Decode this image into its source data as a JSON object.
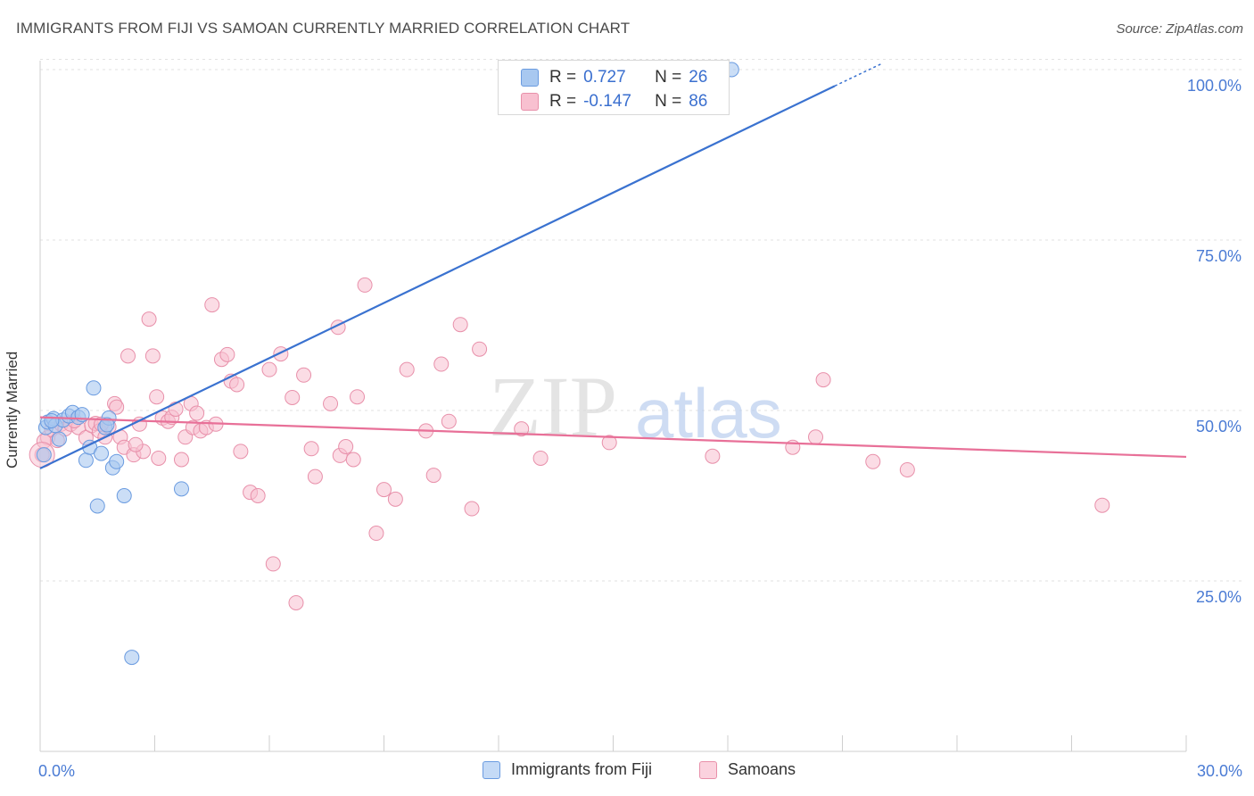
{
  "title": "IMMIGRANTS FROM FIJI VS SAMOAN CURRENTLY MARRIED CORRELATION CHART",
  "source": "Source: ZipAtlas.com",
  "watermark": {
    "zip": "ZIP",
    "atlas": "atlas"
  },
  "legend_stats": [
    {
      "r_label": "R =",
      "r_value": "0.727",
      "n_label": "N =",
      "n_value": "26",
      "color": "#a8c8f0",
      "border": "#6a9be0"
    },
    {
      "r_label": "R =",
      "r_value": "-0.147",
      "n_label": "N =",
      "n_value": "86",
      "color": "#f8c0d0",
      "border": "#e890aa"
    }
  ],
  "legend_bottom": [
    {
      "label": "Immigrants from Fiji",
      "color": "#c4daf6",
      "border": "#6a9be0"
    },
    {
      "label": "Samoans",
      "color": "#fbd2de",
      "border": "#e890aa"
    }
  ],
  "chart_data": {
    "type": "scatter",
    "title": "IMMIGRANTS FROM FIJI VS SAMOAN CURRENTLY MARRIED CORRELATION CHART",
    "xlabel": "",
    "ylabel": "Currently Married",
    "xlim": [
      0,
      30
    ],
    "ylim": [
      0,
      102
    ],
    "x_tick_labels": [
      "0.0%",
      "30.0%"
    ],
    "y_ticks": [
      25,
      50,
      75,
      100
    ],
    "y_tick_labels": [
      "25.0%",
      "50.0%",
      "75.0%",
      "100.0%"
    ],
    "grid": true,
    "legend_position": "top-center",
    "series": [
      {
        "name": "Immigrants from Fiji",
        "color": "#5b8fe0",
        "fill": "#a8c8f0",
        "trend": {
          "x": [
            0,
            20.8
          ],
          "y": [
            41.5,
            97.6
          ]
        },
        "trend_dash": {
          "x": [
            20.8,
            22
          ],
          "y": [
            97.6,
            100.8
          ]
        },
        "points": [
          [
            0.1,
            43.5
          ],
          [
            0.15,
            47.5
          ],
          [
            0.2,
            48.3
          ],
          [
            0.35,
            48.8
          ],
          [
            0.4,
            47.8
          ],
          [
            0.5,
            45.8
          ],
          [
            0.6,
            48.6
          ],
          [
            0.75,
            49.2
          ],
          [
            0.85,
            49.7
          ],
          [
            1.0,
            49.0
          ],
          [
            1.1,
            49.4
          ],
          [
            1.2,
            42.7
          ],
          [
            1.3,
            44.6
          ],
          [
            1.4,
            53.3
          ],
          [
            1.5,
            36.0
          ],
          [
            1.6,
            43.7
          ],
          [
            1.7,
            47.5
          ],
          [
            1.8,
            48.9
          ],
          [
            1.9,
            41.6
          ],
          [
            2.0,
            42.5
          ],
          [
            2.2,
            37.5
          ],
          [
            2.4,
            13.8
          ],
          [
            3.7,
            38.5
          ],
          [
            18.1,
            100.0
          ],
          [
            0.3,
            48.5
          ],
          [
            1.75,
            47.9
          ]
        ]
      },
      {
        "name": "Samoans",
        "color": "#e87098",
        "fill": "#f8c0d0",
        "trend": {
          "x": [
            0,
            30
          ],
          "y": [
            49.0,
            43.2
          ]
        },
        "points": [
          [
            0.05,
            43.5
          ],
          [
            0.2,
            46.0
          ],
          [
            0.3,
            47.2
          ],
          [
            0.45,
            45.6
          ],
          [
            0.55,
            48.0
          ],
          [
            0.65,
            47.3
          ],
          [
            0.8,
            48.0
          ],
          [
            1.0,
            47.5
          ],
          [
            1.2,
            46.0
          ],
          [
            1.35,
            47.8
          ],
          [
            1.45,
            48.1
          ],
          [
            1.55,
            47.0
          ],
          [
            1.7,
            46.1
          ],
          [
            1.8,
            47.6
          ],
          [
            1.95,
            51.0
          ],
          [
            2.0,
            50.5
          ],
          [
            2.1,
            46.1
          ],
          [
            2.2,
            44.6
          ],
          [
            2.3,
            58.0
          ],
          [
            2.45,
            43.5
          ],
          [
            2.6,
            48.0
          ],
          [
            2.7,
            44.0
          ],
          [
            2.85,
            63.4
          ],
          [
            2.95,
            58.0
          ],
          [
            3.05,
            52.0
          ],
          [
            3.1,
            43.0
          ],
          [
            3.2,
            48.9
          ],
          [
            3.35,
            48.4
          ],
          [
            3.45,
            49.0
          ],
          [
            3.55,
            50.2
          ],
          [
            3.7,
            42.8
          ],
          [
            3.8,
            46.1
          ],
          [
            3.95,
            51.0
          ],
          [
            4.0,
            47.5
          ],
          [
            4.1,
            49.6
          ],
          [
            4.2,
            47.0
          ],
          [
            4.35,
            47.5
          ],
          [
            4.5,
            65.5
          ],
          [
            4.6,
            48.0
          ],
          [
            4.75,
            57.5
          ],
          [
            4.9,
            58.2
          ],
          [
            5.0,
            54.3
          ],
          [
            5.15,
            53.8
          ],
          [
            5.25,
            44.0
          ],
          [
            5.5,
            38.0
          ],
          [
            5.7,
            37.5
          ],
          [
            6.0,
            56.0
          ],
          [
            6.1,
            27.5
          ],
          [
            6.3,
            58.3
          ],
          [
            6.6,
            51.9
          ],
          [
            6.7,
            21.8
          ],
          [
            6.9,
            55.2
          ],
          [
            7.1,
            44.4
          ],
          [
            7.2,
            40.3
          ],
          [
            7.6,
            51.0
          ],
          [
            7.8,
            62.2
          ],
          [
            7.85,
            43.4
          ],
          [
            8.0,
            44.7
          ],
          [
            8.2,
            42.8
          ],
          [
            8.3,
            52.0
          ],
          [
            8.5,
            68.4
          ],
          [
            8.8,
            32.0
          ],
          [
            9.0,
            38.4
          ],
          [
            9.3,
            37.0
          ],
          [
            9.6,
            56.0
          ],
          [
            10.1,
            47.0
          ],
          [
            10.3,
            40.5
          ],
          [
            10.5,
            56.8
          ],
          [
            10.7,
            48.4
          ],
          [
            11.0,
            62.6
          ],
          [
            11.3,
            35.6
          ],
          [
            11.5,
            59.0
          ],
          [
            12.6,
            47.3
          ],
          [
            13.1,
            43.0
          ],
          [
            14.9,
            45.3
          ],
          [
            17.6,
            43.3
          ],
          [
            19.7,
            44.6
          ],
          [
            20.3,
            46.1
          ],
          [
            20.5,
            54.5
          ],
          [
            21.8,
            42.5
          ],
          [
            22.7,
            41.3
          ],
          [
            27.8,
            36.1
          ],
          [
            0.1,
            45.5
          ],
          [
            0.9,
            48.5
          ],
          [
            1.6,
            48.0
          ],
          [
            2.5,
            45.0
          ]
        ]
      }
    ]
  }
}
